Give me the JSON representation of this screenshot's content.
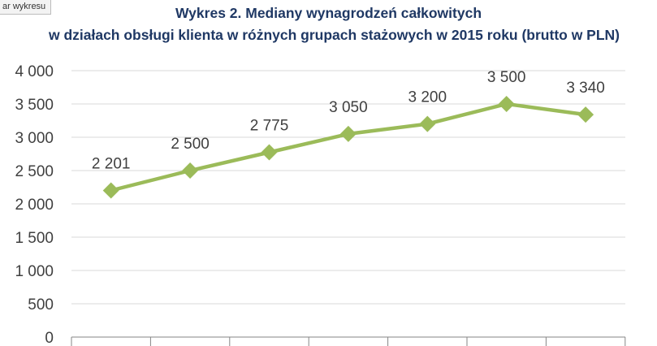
{
  "ui": {
    "chart_area_tag": "ar wykresu"
  },
  "chart_data": {
    "type": "line",
    "title": "Wykres 2. Mediany wynagrodzeń całkowitych",
    "subtitle": "w działach obsługi klienta w różnych grupach stażowych w 2015 roku (brutto w PLN)",
    "xlabel": "",
    "ylabel": "",
    "categories": [
      "",
      "",
      "",
      "",
      "",
      "",
      ""
    ],
    "series": [
      {
        "values": [
          2201,
          2500,
          2775,
          3050,
          3200,
          3500,
          3340
        ],
        "data_labels": [
          "2 201",
          "2 500",
          "2 775",
          "3 050",
          "3 200",
          "3 500",
          "3 340"
        ]
      }
    ],
    "ylim": [
      0,
      4000
    ],
    "yticks": [
      0,
      500,
      1000,
      1500,
      2000,
      2500,
      3000,
      3500,
      4000
    ],
    "ytick_labels": [
      "0",
      "500",
      "1 000",
      "1 500",
      "2 000",
      "2 500",
      "3 000",
      "3 500",
      "4 000"
    ],
    "grid": true,
    "legend": "none",
    "colors": {
      "series": "#9bbb59",
      "grid": "#d9d9d9",
      "axis": "#868686",
      "text": "#404040",
      "title": "#1f3864"
    }
  }
}
